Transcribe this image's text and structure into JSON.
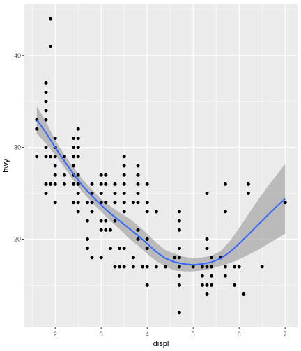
{
  "colors": {
    "panel_background": "#ebebeb",
    "grid_major": "#ffffff",
    "point": "#000000",
    "smooth_line": "#3366ff",
    "confidence_band": "#999999"
  },
  "chart_data": {
    "type": "scatter",
    "title": "",
    "xlabel": "displ",
    "ylabel": "hwy",
    "xlim": [
      1.33,
      7.27
    ],
    "ylim": [
      10.4,
      45.6
    ],
    "x_ticks": [
      2,
      3,
      4,
      5,
      6,
      7
    ],
    "x_tick_labels": [
      "2",
      "3",
      "4",
      "5",
      "6",
      "7"
    ],
    "y_ticks": [
      20,
      30,
      40
    ],
    "y_tick_labels": [
      "20",
      "30",
      "40"
    ],
    "grid": true,
    "legend": "none",
    "points": [
      [
        1.6,
        33
      ],
      [
        1.6,
        32
      ],
      [
        1.6,
        29
      ],
      [
        1.8,
        37
      ],
      [
        1.8,
        36
      ],
      [
        1.8,
        35
      ],
      [
        1.8,
        34
      ],
      [
        1.8,
        33
      ],
      [
        1.8,
        30
      ],
      [
        1.8,
        29
      ],
      [
        1.8,
        26
      ],
      [
        1.8,
        25
      ],
      [
        1.9,
        44
      ],
      [
        1.9,
        41
      ],
      [
        1.9,
        29
      ],
      [
        1.9,
        26
      ],
      [
        2.0,
        31
      ],
      [
        2.0,
        30
      ],
      [
        2.0,
        29
      ],
      [
        2.0,
        28
      ],
      [
        2.0,
        27
      ],
      [
        2.0,
        26
      ],
      [
        2.0,
        24
      ],
      [
        2.2,
        29
      ],
      [
        2.2,
        27
      ],
      [
        2.2,
        26
      ],
      [
        2.4,
        31
      ],
      [
        2.4,
        30
      ],
      [
        2.4,
        29
      ],
      [
        2.4,
        27
      ],
      [
        2.4,
        26
      ],
      [
        2.4,
        24
      ],
      [
        2.4,
        28
      ],
      [
        2.5,
        32
      ],
      [
        2.5,
        31
      ],
      [
        2.5,
        30
      ],
      [
        2.5,
        29
      ],
      [
        2.5,
        27
      ],
      [
        2.5,
        26
      ],
      [
        2.5,
        25
      ],
      [
        2.5,
        24
      ],
      [
        2.5,
        23
      ],
      [
        2.7,
        24
      ],
      [
        2.7,
        22
      ],
      [
        2.7,
        20
      ],
      [
        2.7,
        19
      ],
      [
        2.8,
        26
      ],
      [
        2.8,
        25
      ],
      [
        2.8,
        24
      ],
      [
        2.8,
        23
      ],
      [
        2.8,
        18
      ],
      [
        3.0,
        27
      ],
      [
        3.0,
        26
      ],
      [
        3.0,
        25
      ],
      [
        3.0,
        24
      ],
      [
        3.0,
        22
      ],
      [
        3.0,
        21
      ],
      [
        3.0,
        18
      ],
      [
        3.1,
        27
      ],
      [
        3.1,
        26
      ],
      [
        3.1,
        24
      ],
      [
        3.1,
        22
      ],
      [
        3.1,
        21
      ],
      [
        3.2,
        21
      ],
      [
        3.2,
        19
      ],
      [
        3.3,
        26
      ],
      [
        3.3,
        25
      ],
      [
        3.3,
        24
      ],
      [
        3.3,
        22
      ],
      [
        3.3,
        17
      ],
      [
        3.4,
        19
      ],
      [
        3.4,
        17
      ],
      [
        3.5,
        29
      ],
      [
        3.5,
        28
      ],
      [
        3.5,
        27
      ],
      [
        3.5,
        26
      ],
      [
        3.5,
        25
      ],
      [
        3.5,
        24
      ],
      [
        3.5,
        23
      ],
      [
        3.5,
        19
      ],
      [
        3.5,
        17
      ],
      [
        3.7,
        24
      ],
      [
        3.7,
        18
      ],
      [
        3.7,
        17
      ],
      [
        3.8,
        28
      ],
      [
        3.8,
        27
      ],
      [
        3.8,
        26
      ],
      [
        3.8,
        25
      ],
      [
        3.8,
        24
      ],
      [
        3.8,
        21
      ],
      [
        3.8,
        20
      ],
      [
        3.9,
        17
      ],
      [
        4.0,
        26
      ],
      [
        4.0,
        24
      ],
      [
        4.0,
        23
      ],
      [
        4.0,
        20
      ],
      [
        4.0,
        19
      ],
      [
        4.0,
        17
      ],
      [
        4.0,
        15
      ],
      [
        4.2,
        23
      ],
      [
        4.2,
        17
      ],
      [
        4.4,
        17
      ],
      [
        4.6,
        18
      ],
      [
        4.7,
        23
      ],
      [
        4.7,
        22
      ],
      [
        4.7,
        21
      ],
      [
        4.7,
        19
      ],
      [
        4.7,
        18
      ],
      [
        4.7,
        17
      ],
      [
        4.7,
        16
      ],
      [
        4.7,
        15
      ],
      [
        4.7,
        12
      ],
      [
        5.0,
        17
      ],
      [
        5.2,
        17
      ],
      [
        5.2,
        16
      ],
      [
        5.2,
        15
      ],
      [
        5.3,
        25
      ],
      [
        5.3,
        20
      ],
      [
        5.3,
        19
      ],
      [
        5.3,
        17
      ],
      [
        5.3,
        15
      ],
      [
        5.3,
        14
      ],
      [
        5.4,
        18
      ],
      [
        5.4,
        17
      ],
      [
        5.4,
        16
      ],
      [
        5.4,
        15
      ],
      [
        5.6,
        18
      ],
      [
        5.7,
        26
      ],
      [
        5.7,
        23
      ],
      [
        5.7,
        17
      ],
      [
        5.7,
        16
      ],
      [
        5.9,
        17
      ],
      [
        5.9,
        15
      ],
      [
        6.0,
        17
      ],
      [
        6.1,
        14
      ],
      [
        6.2,
        26
      ],
      [
        6.2,
        25
      ],
      [
        6.5,
        17
      ],
      [
        7.0,
        24
      ]
    ],
    "smooth": {
      "x": [
        1.6,
        1.8,
        2.0,
        2.2,
        2.4,
        2.6,
        2.8,
        3.0,
        3.2,
        3.4,
        3.6,
        3.8,
        4.0,
        4.2,
        4.4,
        4.6,
        4.8,
        5.0,
        5.2,
        5.4,
        5.6,
        5.8,
        6.0,
        6.2,
        6.4,
        6.6,
        6.8,
        7.0
      ],
      "y": [
        33.0,
        31.6,
        30.0,
        28.5,
        27.1,
        25.8,
        24.7,
        23.7,
        22.8,
        22.0,
        21.2,
        20.4,
        19.5,
        18.6,
        17.9,
        17.5,
        17.3,
        17.2,
        17.3,
        17.5,
        17.9,
        18.6,
        19.5,
        20.5,
        21.5,
        22.5,
        23.5,
        24.4
      ],
      "lower": [
        31.5,
        30.4,
        29.2,
        27.8,
        26.4,
        25.1,
        24.0,
        23.0,
        22.0,
        21.1,
        20.1,
        19.3,
        18.4,
        17.6,
        17.0,
        16.6,
        16.5,
        16.5,
        16.6,
        16.8,
        17.1,
        17.4,
        17.8,
        18.3,
        18.8,
        19.4,
        20.0,
        20.6
      ],
      "upper": [
        34.5,
        32.8,
        30.8,
        29.2,
        27.8,
        26.5,
        25.4,
        24.4,
        23.6,
        22.9,
        22.3,
        21.5,
        20.6,
        19.6,
        18.8,
        18.4,
        18.1,
        17.9,
        18.0,
        18.2,
        18.7,
        19.8,
        21.2,
        22.7,
        24.2,
        25.6,
        26.9,
        28.2
      ]
    }
  }
}
